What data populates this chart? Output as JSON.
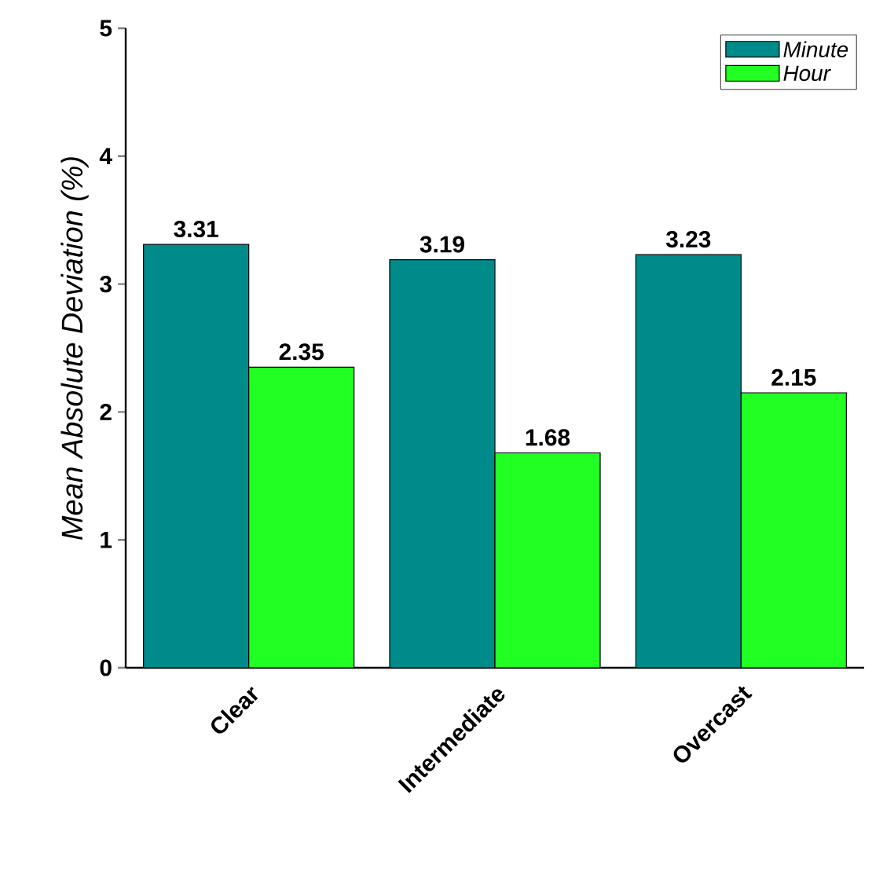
{
  "chart_data": {
    "type": "bar",
    "ylabel": "Mean Absolute Deviation (%)",
    "categories": [
      "Clear",
      "Intermediate",
      "Overcast"
    ],
    "series": [
      {
        "name": "Minute",
        "color": "#008b8b",
        "values": [
          3.31,
          3.19,
          3.23
        ]
      },
      {
        "name": "Hour",
        "color": "#22ff22",
        "values": [
          2.35,
          1.68,
          2.15
        ]
      }
    ],
    "ylim": [
      0,
      5
    ],
    "yticks": [
      0,
      1,
      2,
      3,
      4,
      5
    ],
    "data_labels": true,
    "legend": "top right"
  }
}
